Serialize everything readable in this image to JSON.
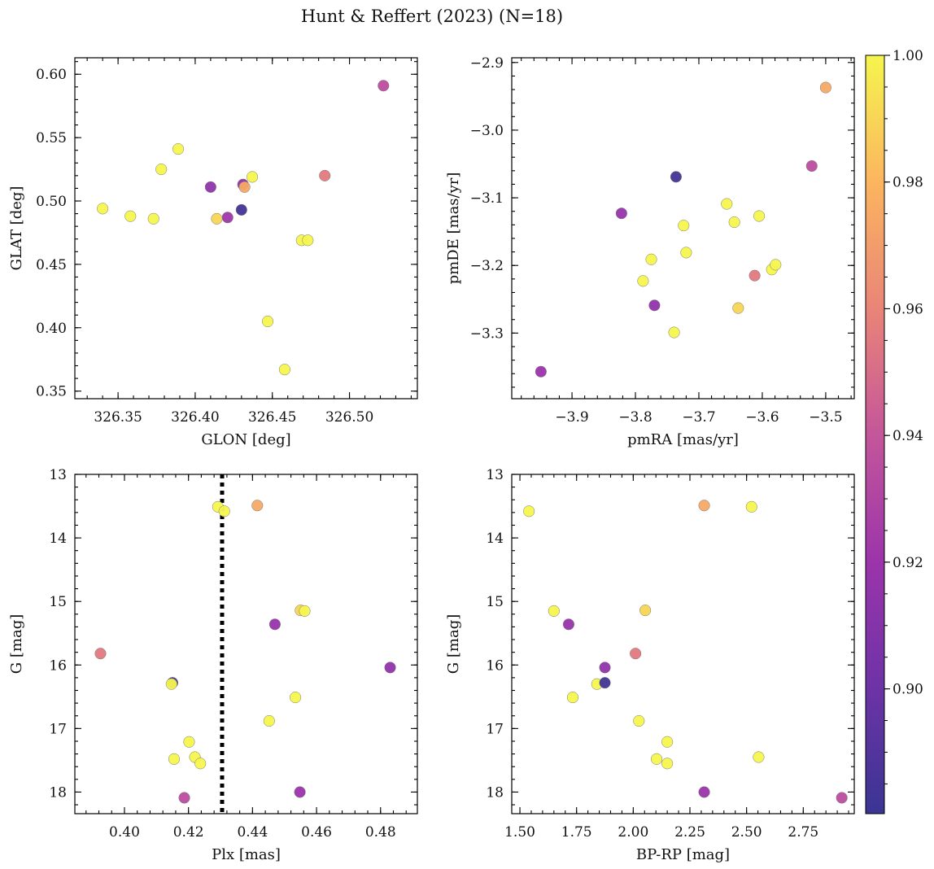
{
  "figure": {
    "title": "Hunt & Reffert (2023) (N=18)"
  },
  "colorbar": {
    "min": 0.8803,
    "max": 1.0,
    "ticks": [
      0.9,
      0.92,
      0.94,
      0.96,
      0.98,
      1.0
    ],
    "tick_labels": [
      "0.90",
      "0.92",
      "0.94",
      "0.96",
      "0.98",
      "1.00"
    ],
    "colormap": "plasma"
  },
  "chart_data": [
    {
      "type": "scatter",
      "panel": "top-left",
      "xlabel": "GLON [deg]",
      "ylabel": "GLAT [deg]",
      "xlim": [
        326.322,
        326.544
      ],
      "ylim": [
        0.344,
        0.613
      ],
      "xticks": [
        326.35,
        326.4,
        326.45,
        326.5
      ],
      "xtick_labels": [
        "326.35",
        "326.40",
        "326.45",
        "326.50"
      ],
      "yticks": [
        0.35,
        0.4,
        0.45,
        0.5,
        0.55,
        0.6
      ],
      "ytick_labels": [
        "0.35",
        "0.40",
        "0.45",
        "0.50",
        "0.55",
        "0.60"
      ],
      "points": [
        {
          "x": 326.34,
          "y": 0.494,
          "c": 1.0
        },
        {
          "x": 326.358,
          "y": 0.488,
          "c": 1.0
        },
        {
          "x": 326.373,
          "y": 0.486,
          "c": 1.0
        },
        {
          "x": 326.378,
          "y": 0.525,
          "c": 1.0
        },
        {
          "x": 326.389,
          "y": 0.541,
          "c": 1.0
        },
        {
          "x": 326.41,
          "y": 0.511,
          "c": 0.915
        },
        {
          "x": 326.414,
          "y": 0.486,
          "c": 0.99
        },
        {
          "x": 326.421,
          "y": 0.487,
          "c": 0.922
        },
        {
          "x": 326.43,
          "y": 0.493,
          "c": 0.883
        },
        {
          "x": 326.431,
          "y": 0.513,
          "c": 0.915
        },
        {
          "x": 326.432,
          "y": 0.511,
          "c": 0.975
        },
        {
          "x": 326.437,
          "y": 0.519,
          "c": 1.0
        },
        {
          "x": 326.447,
          "y": 0.405,
          "c": 1.0
        },
        {
          "x": 326.458,
          "y": 0.367,
          "c": 1.0
        },
        {
          "x": 326.469,
          "y": 0.469,
          "c": 1.0
        },
        {
          "x": 326.473,
          "y": 0.469,
          "c": 1.0
        },
        {
          "x": 326.484,
          "y": 0.52,
          "c": 0.955
        },
        {
          "x": 326.522,
          "y": 0.591,
          "c": 0.935
        }
      ]
    },
    {
      "type": "scatter",
      "panel": "top-right",
      "xlabel": "pmRA [mas/yr]",
      "ylabel": "pmDE [mas/yr]",
      "xlim": [
        -3.995,
        -3.455
      ],
      "ylim": [
        -3.397,
        -2.893
      ],
      "xticks": [
        -3.9,
        -3.8,
        -3.7,
        -3.6,
        -3.5
      ],
      "xtick_labels": [
        "−3.9",
        "−3.8",
        "−3.7",
        "−3.6",
        "−3.5"
      ],
      "yticks": [
        -3.3,
        -3.2,
        -3.1,
        -3.0,
        -2.9
      ],
      "ytick_labels": [
        "−3.3",
        "−3.2",
        "−3.1",
        "−3.0",
        "−2.9"
      ],
      "points": [
        {
          "x": -3.949,
          "y": -3.357,
          "c": 0.92
        },
        {
          "x": -3.822,
          "y": -3.123,
          "c": 0.918
        },
        {
          "x": -3.788,
          "y": -3.223,
          "c": 1.0
        },
        {
          "x": -3.775,
          "y": -3.191,
          "c": 1.0
        },
        {
          "x": -3.77,
          "y": -3.259,
          "c": 0.915
        },
        {
          "x": -3.739,
          "y": -3.299,
          "c": 1.0
        },
        {
          "x": -3.736,
          "y": -3.069,
          "c": 0.883
        },
        {
          "x": -3.724,
          "y": -3.141,
          "c": 1.0
        },
        {
          "x": -3.72,
          "y": -3.181,
          "c": 1.0
        },
        {
          "x": -3.656,
          "y": -3.109,
          "c": 1.0
        },
        {
          "x": -3.644,
          "y": -3.136,
          "c": 1.0
        },
        {
          "x": -3.638,
          "y": -3.263,
          "c": 0.99
        },
        {
          "x": -3.612,
          "y": -3.215,
          "c": 0.955
        },
        {
          "x": -3.605,
          "y": -3.127,
          "c": 1.0
        },
        {
          "x": -3.585,
          "y": -3.206,
          "c": 1.0
        },
        {
          "x": -3.579,
          "y": -3.199,
          "c": 1.0
        },
        {
          "x": -3.522,
          "y": -3.053,
          "c": 0.935
        },
        {
          "x": -3.5,
          "y": -2.937,
          "c": 0.975
        }
      ]
    },
    {
      "type": "scatter",
      "panel": "bottom-left",
      "xlabel": "Plx [mas]",
      "ylabel": "G [mag]",
      "xlim": [
        0.3845,
        0.4915
      ],
      "ylim": [
        18.34,
        13.0
      ],
      "y_inverted": true,
      "vline": {
        "x": 0.4305,
        "style": "dotted",
        "color": "#000000"
      },
      "xticks": [
        0.4,
        0.42,
        0.44,
        0.46,
        0.48
      ],
      "xtick_labels": [
        "0.40",
        "0.42",
        "0.44",
        "0.46",
        "0.48"
      ],
      "yticks": [
        13,
        14,
        15,
        16,
        17,
        18
      ],
      "ytick_labels": [
        "13",
        "14",
        "15",
        "16",
        "17",
        "18"
      ],
      "points": [
        {
          "x": 0.3925,
          "y": 15.82,
          "c": 0.955
        },
        {
          "x": 0.415,
          "y": 16.28,
          "c": 0.883
        },
        {
          "x": 0.4147,
          "y": 16.3,
          "c": 1.0
        },
        {
          "x": 0.4155,
          "y": 17.48,
          "c": 1.0
        },
        {
          "x": 0.4187,
          "y": 18.09,
          "c": 0.935
        },
        {
          "x": 0.4202,
          "y": 17.21,
          "c": 1.0
        },
        {
          "x": 0.422,
          "y": 17.45,
          "c": 1.0
        },
        {
          "x": 0.4237,
          "y": 17.55,
          "c": 1.0
        },
        {
          "x": 0.4292,
          "y": 13.51,
          "c": 1.0
        },
        {
          "x": 0.4312,
          "y": 13.58,
          "c": 1.0
        },
        {
          "x": 0.4415,
          "y": 13.49,
          "c": 0.975
        },
        {
          "x": 0.4452,
          "y": 16.88,
          "c": 1.0
        },
        {
          "x": 0.447,
          "y": 15.36,
          "c": 0.918
        },
        {
          "x": 0.4534,
          "y": 16.51,
          "c": 1.0
        },
        {
          "x": 0.4548,
          "y": 18.0,
          "c": 0.92
        },
        {
          "x": 0.455,
          "y": 15.14,
          "c": 0.99
        },
        {
          "x": 0.4563,
          "y": 15.15,
          "c": 1.0
        },
        {
          "x": 0.483,
          "y": 16.04,
          "c": 0.915
        }
      ]
    },
    {
      "type": "scatter",
      "panel": "bottom-right",
      "xlabel": "BP-RP [mag]",
      "ylabel": "G [mag]",
      "xlim": [
        1.464,
        2.975
      ],
      "ylim": [
        18.34,
        13.0
      ],
      "y_inverted": true,
      "xticks": [
        1.5,
        1.75,
        2.0,
        2.25,
        2.5,
        2.75
      ],
      "xtick_labels": [
        "1.50",
        "1.75",
        "2.00",
        "2.25",
        "2.50",
        "2.75"
      ],
      "yticks": [
        13,
        14,
        15,
        16,
        17,
        18
      ],
      "ytick_labels": [
        "13",
        "14",
        "15",
        "16",
        "17",
        "18"
      ],
      "points": [
        {
          "x": 1.54,
          "y": 13.58,
          "c": 1.0
        },
        {
          "x": 1.65,
          "y": 15.15,
          "c": 1.0
        },
        {
          "x": 1.715,
          "y": 15.36,
          "c": 0.918
        },
        {
          "x": 1.733,
          "y": 16.51,
          "c": 1.0
        },
        {
          "x": 1.84,
          "y": 16.3,
          "c": 1.0
        },
        {
          "x": 1.875,
          "y": 16.04,
          "c": 0.915
        },
        {
          "x": 1.875,
          "y": 16.28,
          "c": 0.883
        },
        {
          "x": 2.01,
          "y": 15.82,
          "c": 0.955
        },
        {
          "x": 2.025,
          "y": 16.88,
          "c": 1.0
        },
        {
          "x": 2.053,
          "y": 15.14,
          "c": 0.99
        },
        {
          "x": 2.103,
          "y": 17.48,
          "c": 1.0
        },
        {
          "x": 2.15,
          "y": 17.21,
          "c": 1.0
        },
        {
          "x": 2.15,
          "y": 17.55,
          "c": 1.0
        },
        {
          "x": 2.313,
          "y": 13.49,
          "c": 0.975
        },
        {
          "x": 2.313,
          "y": 18.0,
          "c": 0.92
        },
        {
          "x": 2.522,
          "y": 13.51,
          "c": 1.0
        },
        {
          "x": 2.553,
          "y": 17.45,
          "c": 1.0
        },
        {
          "x": 2.92,
          "y": 18.09,
          "c": 0.935
        }
      ]
    }
  ]
}
